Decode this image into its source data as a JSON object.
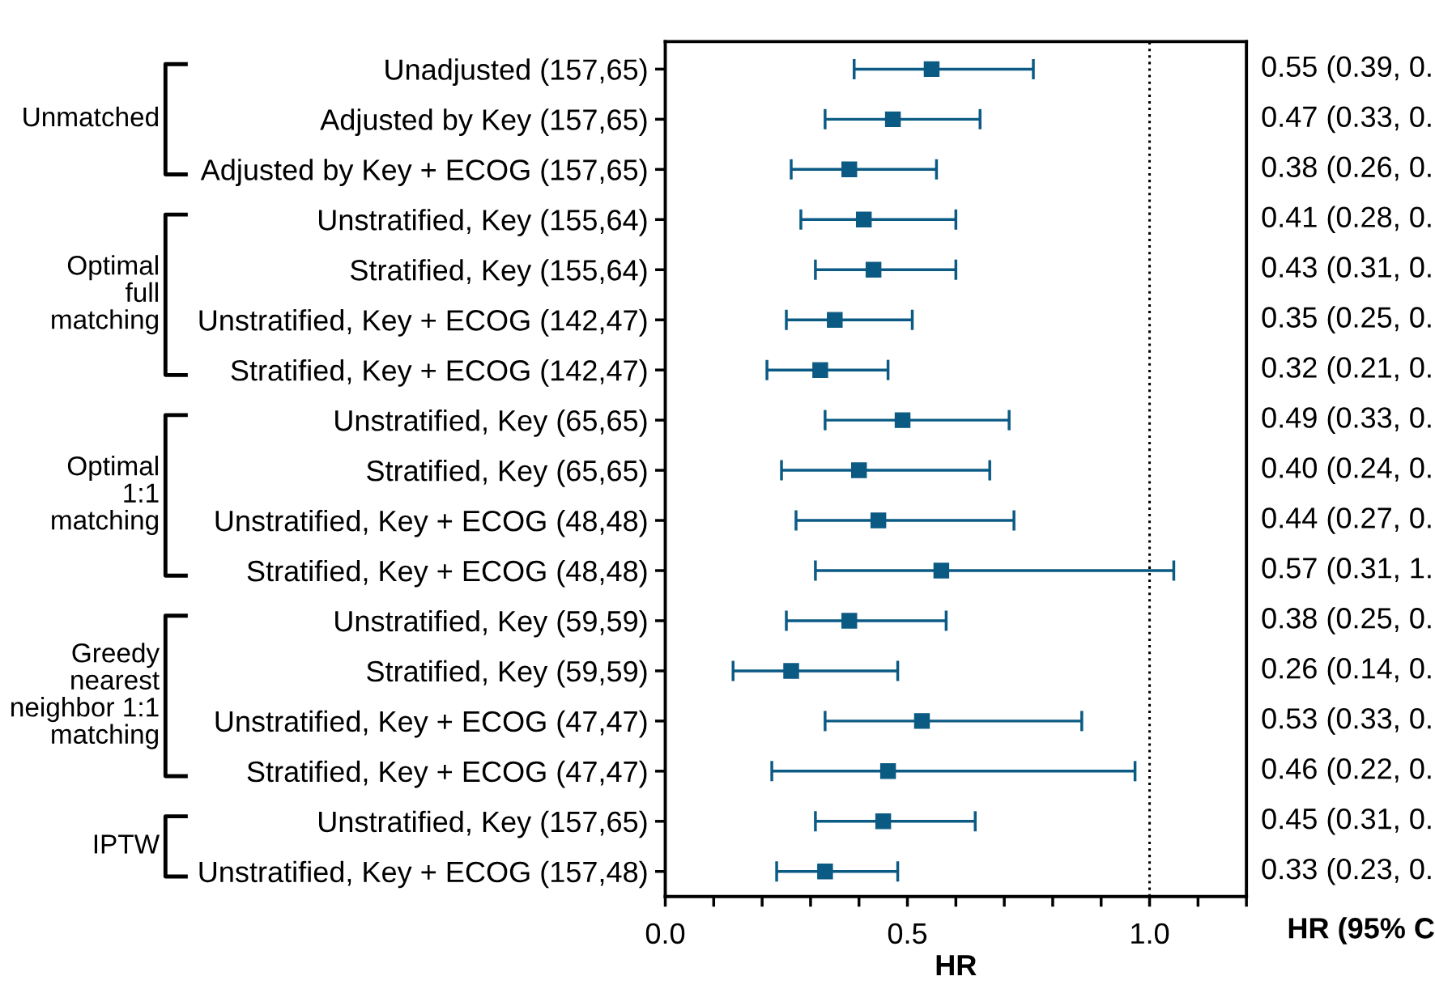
{
  "chart_data": {
    "type": "scatter",
    "orientation": "horizontal",
    "xlabel": "HR",
    "marker": "square",
    "categories": [
      "Unadjusted (157,65)",
      "Adjusted by Key (157,65)",
      "Adjusted by Key + ECOG (157,65)",
      "Unstratified, Key (155,64)",
      "Stratified, Key (155,64)",
      "Unstratified, Key + ECOG (142,47)",
      "Stratified, Key + ECOG (142,47)",
      "Unstratified, Key (65,65)",
      "Stratified, Key (65,65)",
      "Unstratified, Key + ECOG (48,48)",
      "Stratified, Key + ECOG (48,48)",
      "Unstratified, Key (59,59)",
      "Stratified, Key (59,59)",
      "Unstratified, Key + ECOG (47,47)",
      "Stratified, Key + ECOG (47,47)",
      "Unstratified, Key (157,65)",
      "Unstratified, Key + ECOG (157,48)"
    ],
    "series": [
      {
        "color": "#0a5a84",
        "values": [
          0.55,
          0.47,
          0.38,
          0.41,
          0.43,
          0.35,
          0.32,
          0.49,
          0.4,
          0.44,
          0.57,
          0.38,
          0.26,
          0.53,
          0.46,
          0.45,
          0.33
        ],
        "errors": [
          [
            0.39,
            0.76
          ],
          [
            0.33,
            0.65
          ],
          [
            0.26,
            0.56
          ],
          [
            0.28,
            0.6
          ],
          [
            0.31,
            0.6
          ],
          [
            0.25,
            0.51
          ],
          [
            0.21,
            0.46
          ],
          [
            0.33,
            0.71
          ],
          [
            0.24,
            0.67
          ],
          [
            0.27,
            0.72
          ],
          [
            0.31,
            1.05
          ],
          [
            0.25,
            0.58
          ],
          [
            0.14,
            0.48
          ],
          [
            0.33,
            0.86
          ],
          [
            0.22,
            0.97
          ],
          [
            0.31,
            0.64
          ],
          [
            0.23,
            0.48
          ]
        ],
        "value_labels": [
          "0.55 (0.39, 0.",
          "0.47 (0.33, 0.",
          "0.38 (0.26, 0.",
          "0.41 (0.28, 0.",
          "0.43 (0.31, 0.",
          "0.35 (0.25, 0.",
          "0.32 (0.21, 0.",
          "0.49 (0.33, 0.",
          "0.40 (0.24, 0.",
          "0.44 (0.27, 0.",
          "0.57 (0.31, 1.",
          "0.38 (0.25, 0.",
          "0.26 (0.14, 0.",
          "0.53 (0.33, 0.",
          "0.46 (0.22, 0.",
          "0.45 (0.31, 0.",
          "0.33 (0.23, 0."
        ]
      }
    ],
    "xlim": [
      0,
      1.2
    ],
    "xticks": [
      {
        "value": 0,
        "label": "0.0"
      },
      {
        "value": 0.1,
        "label": null
      },
      {
        "value": 0.2,
        "label": null
      },
      {
        "value": 0.3,
        "label": null
      },
      {
        "value": 0.4,
        "label": null
      },
      0.5,
      {
        "value": 0.6,
        "label": null
      },
      {
        "value": 0.7,
        "label": null
      },
      {
        "value": 0.8,
        "label": null
      },
      {
        "value": 0.9,
        "label": null
      },
      {
        "value": 1,
        "label": "1.0"
      },
      {
        "value": 1.1,
        "label": null
      },
      {
        "value": 1.2,
        "label": null
      }
    ],
    "ref_lines": [
      {
        "axis": "x",
        "value": 1,
        "line_style": "dotted",
        "color": "#000000"
      }
    ],
    "grid": false,
    "annotations": [
      "Unmatched",
      "Optimal\nfull\nmatching",
      "Optimal\n1:1\nmatching",
      "Greedy\nnearest\nneighbor 1:1\nmatching",
      "IPTW",
      "HR (95% C"
    ]
  }
}
